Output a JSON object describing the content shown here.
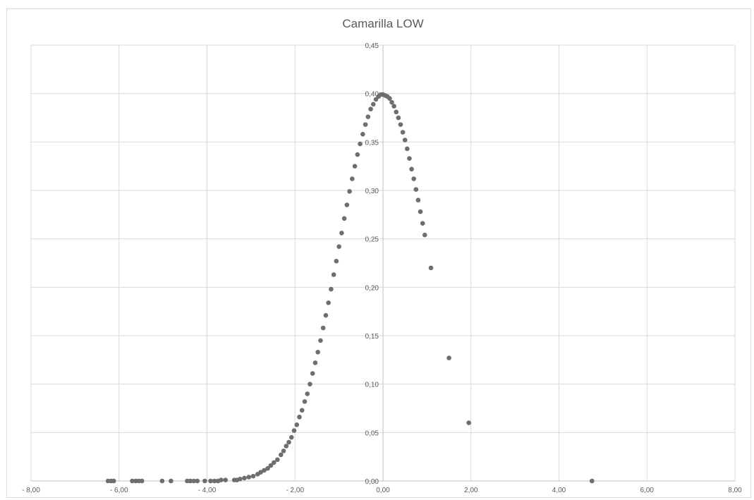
{
  "chart_data": {
    "type": "scatter",
    "title": "Camarilla LOW",
    "xlabel": "",
    "ylabel": "",
    "xlim": [
      -8,
      8
    ],
    "ylim": [
      0,
      0.45
    ],
    "grid": true,
    "legend": "none",
    "x_ticks": [
      "- 8,00",
      "- 6,00",
      "- 4,00",
      "- 2,00",
      "0,00",
      "2,00",
      "4,00",
      "6,00",
      "8,00"
    ],
    "y_ticks": [
      "0,00",
      "0,05",
      "0,10",
      "0,15",
      "0,20",
      "0,25",
      "0,30",
      "0,35",
      "0,40",
      "0,45"
    ],
    "colors": {
      "marker": "#6e6e6e",
      "grid": "#d9d9d9",
      "text": "#595959"
    },
    "series": [
      {
        "x": [
          -6.25,
          -6.18,
          -6.12,
          -5.7,
          -5.62,
          -5.55,
          -5.48,
          -5.02,
          -4.82,
          -4.45,
          -4.38,
          -4.3,
          -4.22,
          -4.05,
          -3.92,
          -3.83,
          -3.75,
          -3.68,
          -3.58,
          -3.38,
          -3.32,
          -3.25,
          -3.15,
          -3.05,
          -2.95,
          -2.85,
          -2.78,
          -2.7,
          -2.62,
          -2.55,
          -2.48,
          -2.4,
          -2.32,
          -2.26,
          -2.2,
          -2.14,
          -2.08,
          -2.02,
          -1.96,
          -1.9,
          -1.84,
          -1.78,
          -1.72,
          -1.66,
          -1.6,
          -1.54,
          -1.48,
          -1.42,
          -1.36,
          -1.3,
          -1.24,
          -1.18,
          -1.12,
          -1.06,
          -1.0,
          -0.94,
          -0.88,
          -0.82,
          -0.76,
          -0.7,
          -0.64,
          -0.58,
          -0.52,
          -0.46,
          -0.4,
          -0.34,
          -0.28,
          -0.22,
          -0.16,
          -0.1,
          -0.05,
          0.0,
          0.05,
          0.1,
          0.15,
          0.2,
          0.25,
          0.3,
          0.35,
          0.4,
          0.45,
          0.5,
          0.55,
          0.6,
          0.65,
          0.7,
          0.75,
          0.8,
          0.85,
          0.9,
          0.95,
          1.09,
          1.5,
          1.95,
          4.75
        ],
        "y": [
          0.0,
          0.0,
          0.0,
          0.0,
          0.0,
          0.0,
          0.0,
          0.0,
          0.0,
          0.0,
          0.0,
          0.0,
          0.0,
          0.0,
          0.0,
          0.0,
          0.0,
          0.001,
          0.001,
          0.001,
          0.001,
          0.002,
          0.003,
          0.004,
          0.005,
          0.007,
          0.009,
          0.011,
          0.013,
          0.016,
          0.019,
          0.022,
          0.027,
          0.031,
          0.036,
          0.04,
          0.045,
          0.052,
          0.058,
          0.066,
          0.073,
          0.082,
          0.09,
          0.1,
          0.111,
          0.122,
          0.133,
          0.145,
          0.158,
          0.171,
          0.184,
          0.198,
          0.213,
          0.227,
          0.242,
          0.256,
          0.271,
          0.285,
          0.299,
          0.312,
          0.325,
          0.337,
          0.348,
          0.358,
          0.368,
          0.376,
          0.384,
          0.389,
          0.394,
          0.397,
          0.399,
          0.399,
          0.398,
          0.397,
          0.395,
          0.391,
          0.387,
          0.381,
          0.375,
          0.368,
          0.36,
          0.352,
          0.343,
          0.333,
          0.322,
          0.312,
          0.301,
          0.29,
          0.278,
          0.266,
          0.254,
          0.22,
          0.127,
          0.06,
          0.0
        ]
      }
    ]
  }
}
